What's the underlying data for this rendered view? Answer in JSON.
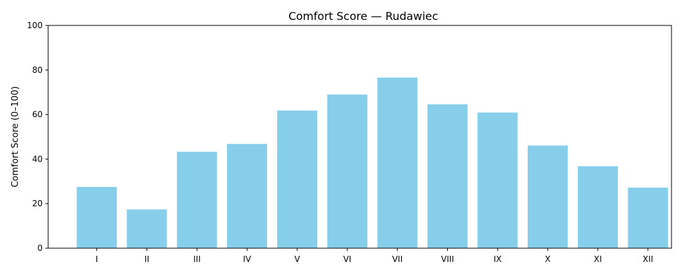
{
  "colors": {
    "bar": "#87ceeb",
    "axis": "#000000"
  },
  "chart_data": {
    "type": "bar",
    "title": "Comfort Score — Rudawiec",
    "xlabel": "",
    "ylabel": "Comfort Score (0–100)",
    "categories": [
      "I",
      "II",
      "III",
      "IV",
      "V",
      "VI",
      "VII",
      "VIII",
      "IX",
      "X",
      "XI",
      "XII"
    ],
    "values": [
      27.5,
      17.4,
      43.3,
      46.8,
      61.8,
      69.0,
      76.6,
      64.6,
      60.9,
      46.1,
      36.8,
      27.2
    ],
    "ylim": [
      0,
      100
    ],
    "yticks": [
      0,
      20,
      40,
      60,
      80,
      100
    ],
    "grid": false,
    "legend": "none"
  }
}
